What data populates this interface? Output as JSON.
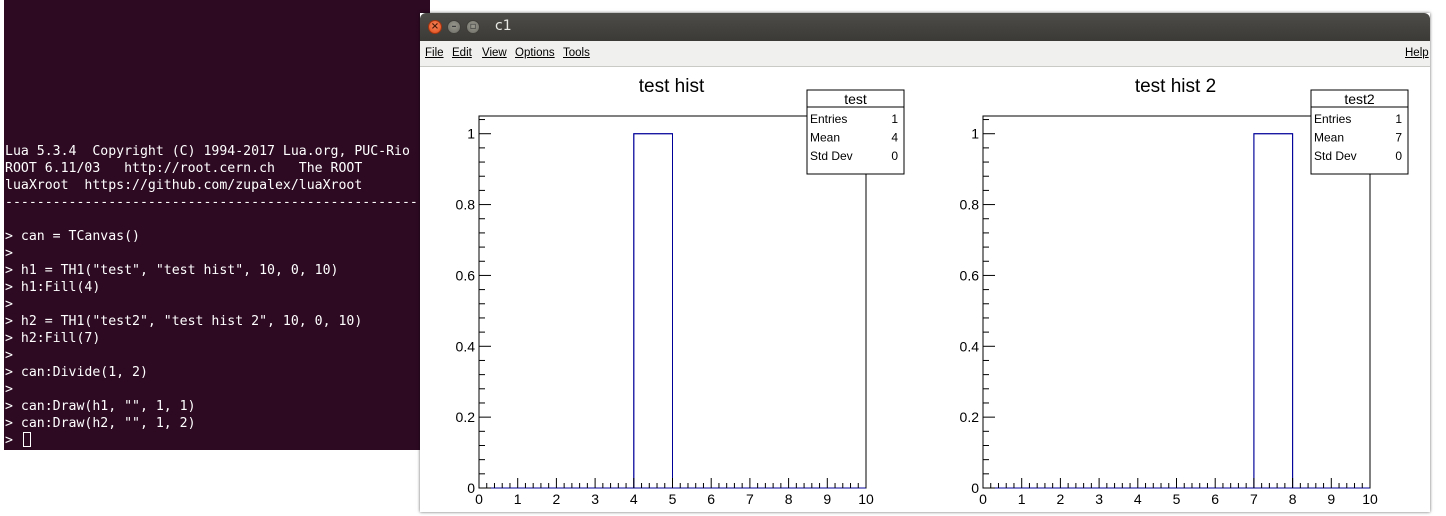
{
  "terminal": {
    "lines": [
      "Lua 5.3.4  Copyright (C) 1994-2017 Lua.org, PUC-Rio",
      "ROOT 6.11/03   http://root.cern.ch   The ROOT",
      "luaXroot  https://github.com/zupalex/luaXroot",
      "------------------------------------------------------",
      "",
      "> can = TCanvas()",
      ">",
      "> h1 = TH1(\"test\", \"test hist\", 10, 0, 10)",
      "> h1:Fill(4)",
      ">",
      "> h2 = TH1(\"test2\", \"test hist 2\", 10, 0, 10)",
      "> h2:Fill(7)",
      ">",
      "> can:Divide(1, 2)",
      ">",
      "> can:Draw(h1, \"\", 1, 1)",
      "> can:Draw(h2, \"\", 1, 2)",
      "> "
    ]
  },
  "window": {
    "title": "c1",
    "close_glyph": "×",
    "min_glyph": "–",
    "max_glyph": "▫"
  },
  "menu": {
    "file": "File",
    "edit": "Edit",
    "view": "View",
    "options": "Options",
    "tools": "Tools",
    "help": "Help"
  },
  "chart_data": [
    {
      "type": "bar",
      "title": "test hist",
      "x_bin_edges": [
        0,
        1,
        2,
        3,
        4,
        5,
        6,
        7,
        8,
        9,
        10
      ],
      "values": [
        0,
        0,
        0,
        0,
        1,
        0,
        0,
        0,
        0,
        0
      ],
      "xlim": [
        0,
        10
      ],
      "ylim": [
        0,
        1.05
      ],
      "x_ticks": [
        "0",
        "1",
        "2",
        "3",
        "4",
        "5",
        "6",
        "7",
        "8",
        "9",
        "10"
      ],
      "y_ticks": [
        "0",
        "0.2",
        "0.4",
        "0.6",
        "0.8",
        "1"
      ],
      "y_tick_values": [
        0,
        0.2,
        0.4,
        0.6,
        0.8,
        1
      ],
      "line_color": "#000099",
      "stats": {
        "name": "test",
        "rows": [
          {
            "label": "Entries",
            "value": "1"
          },
          {
            "label": "Mean",
            "value": "4"
          },
          {
            "label": "Std Dev",
            "value": "0"
          }
        ]
      }
    },
    {
      "type": "bar",
      "title": "test hist 2",
      "x_bin_edges": [
        0,
        1,
        2,
        3,
        4,
        5,
        6,
        7,
        8,
        9,
        10
      ],
      "values": [
        0,
        0,
        0,
        0,
        0,
        0,
        0,
        1,
        0,
        0
      ],
      "xlim": [
        0,
        10
      ],
      "ylim": [
        0,
        1.05
      ],
      "x_ticks": [
        "0",
        "1",
        "2",
        "3",
        "4",
        "5",
        "6",
        "7",
        "8",
        "9",
        "10"
      ],
      "y_ticks": [
        "0",
        "0.2",
        "0.4",
        "0.6",
        "0.8",
        "1"
      ],
      "y_tick_values": [
        0,
        0.2,
        0.4,
        0.6,
        0.8,
        1
      ],
      "line_color": "#000099",
      "stats": {
        "name": "test2",
        "rows": [
          {
            "label": "Entries",
            "value": "1"
          },
          {
            "label": "Mean",
            "value": "7"
          },
          {
            "label": "Std Dev",
            "value": "0"
          }
        ]
      }
    }
  ]
}
